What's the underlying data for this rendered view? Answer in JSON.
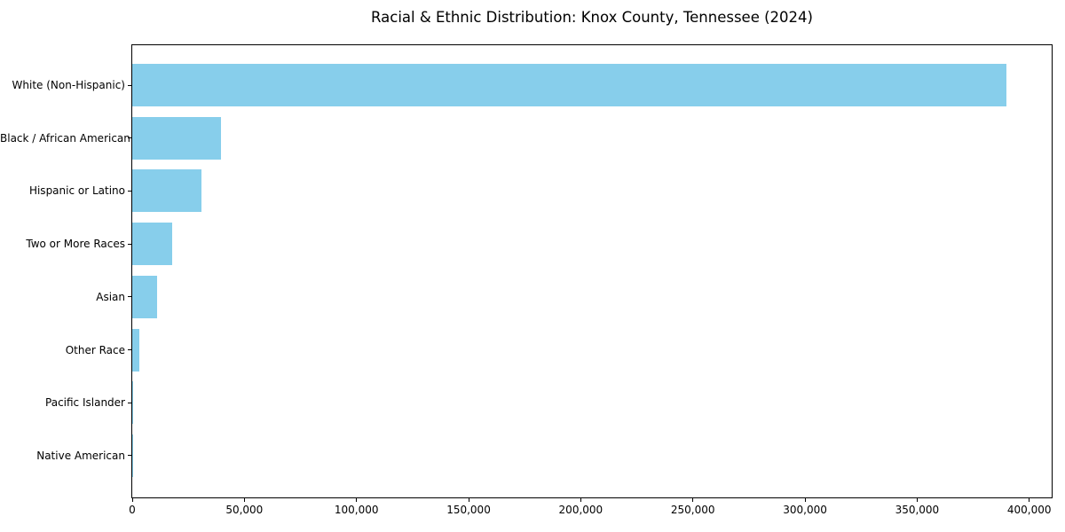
{
  "chart_data": {
    "type": "bar",
    "orientation": "horizontal",
    "title": "Racial & Ethnic Distribution: Knox County, Tennessee (2024)",
    "categories": [
      "White (Non-Hispanic)",
      "Black / African American",
      "Hispanic or Latino",
      "Two or More Races",
      "Asian",
      "Other Race",
      "Pacific Islander",
      "Native American"
    ],
    "values": [
      390000,
      39500,
      31000,
      18000,
      11000,
      3000,
      300,
      250
    ],
    "xlabel": "",
    "ylabel": "",
    "xlim": [
      0,
      410000
    ],
    "xticks": [
      0,
      50000,
      100000,
      150000,
      200000,
      250000,
      300000,
      350000,
      400000
    ],
    "xticklabels": [
      "0",
      "50,000",
      "100,000",
      "150,000",
      "200,000",
      "250,000",
      "300,000",
      "350,000",
      "400,000"
    ],
    "grid": false,
    "legend": false,
    "bar_color": "#87CEEB",
    "axis_color": "#000000",
    "background_color": "#FFFFFF"
  }
}
